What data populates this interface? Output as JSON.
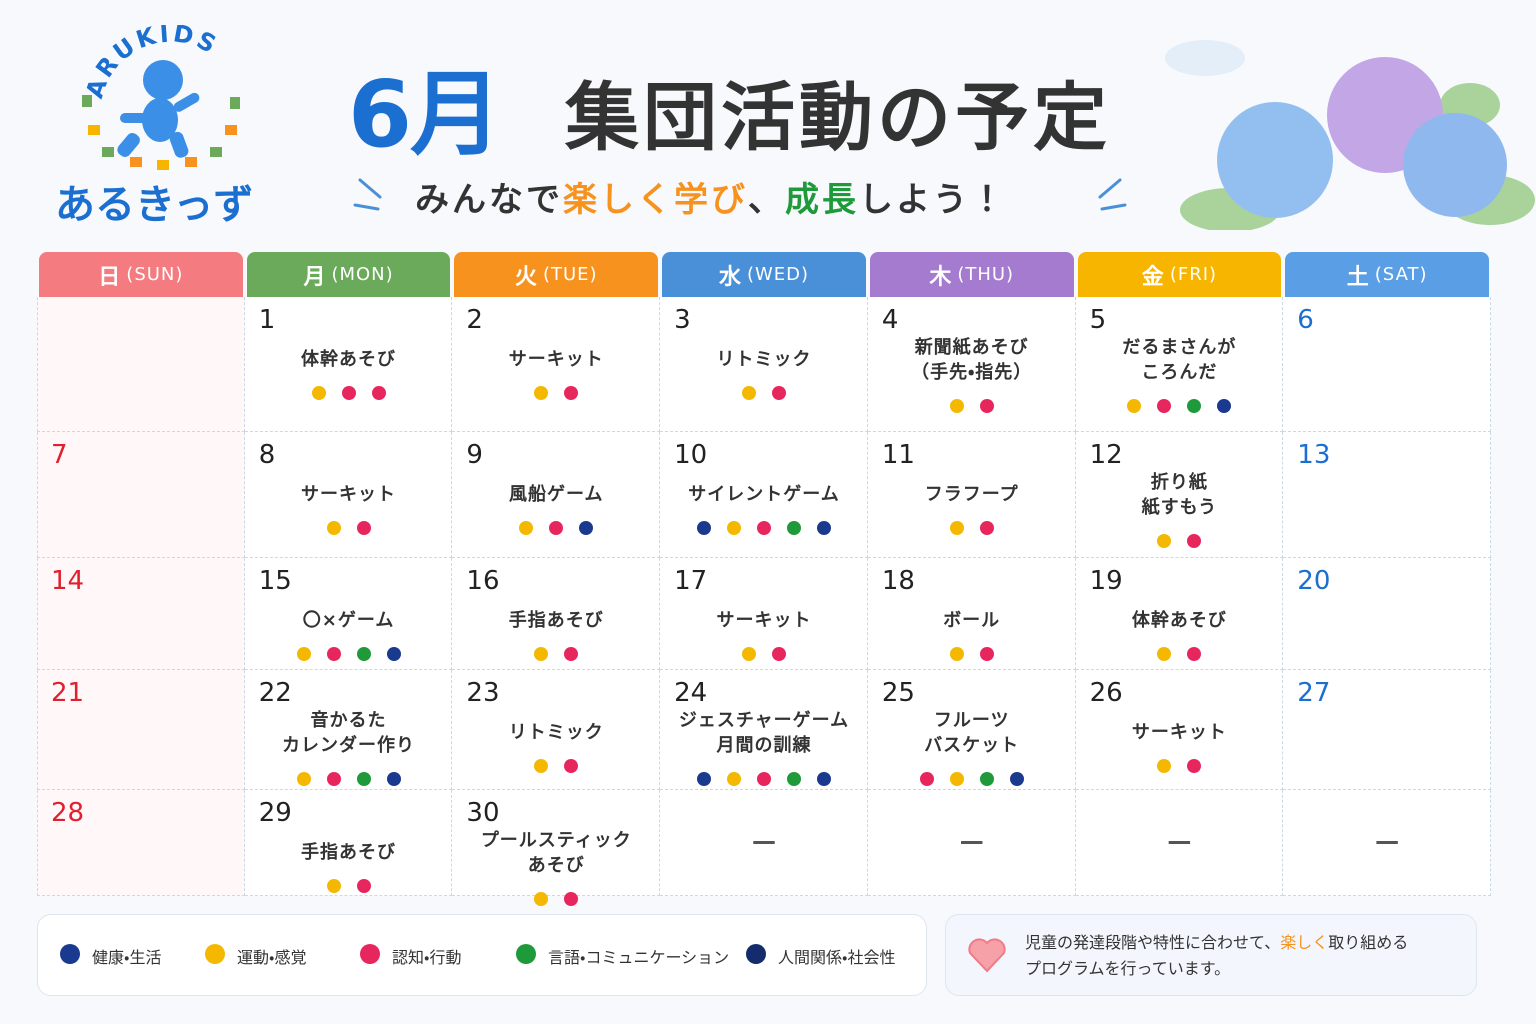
{
  "logo": {
    "arc": "ARUKIDS",
    "name": "あるきっず"
  },
  "header": {
    "month": "6月",
    "title": "集団活動の予定",
    "subtitle": [
      "みんなで",
      "楽しく学び",
      "、",
      "成長",
      "しよう！"
    ]
  },
  "weekdays": [
    {
      "day": "日",
      "en": "(SUN)",
      "color": "#f47b80"
    },
    {
      "day": "月",
      "en": "(MON)",
      "color": "#6aaa5a"
    },
    {
      "day": "火",
      "en": "(TUE)",
      "color": "#f7921e"
    },
    {
      "day": "水",
      "en": "(WED)",
      "color": "#4a90d9"
    },
    {
      "day": "木",
      "en": "(THU)",
      "color": "#a57bd0"
    },
    {
      "day": "金",
      "en": "(FRI)",
      "color": "#f7b500"
    },
    {
      "day": "土",
      "en": "(SAT)",
      "color": "#5a9fe6"
    }
  ],
  "weeks": [
    [
      null,
      {
        "date": 1,
        "lines": [
          "体幹あそび"
        ],
        "dots": [
          "#f5b800",
          "#e8265e",
          "#e8265e"
        ]
      },
      {
        "date": 2,
        "lines": [
          "サーキット"
        ],
        "dots": [
          "#f5b800",
          "#e8265e"
        ]
      },
      {
        "date": 3,
        "lines": [
          "リトミック"
        ],
        "dots": [
          "#f5b800",
          "#e8265e"
        ]
      },
      {
        "date": 4,
        "lines": [
          "新聞紙あそび",
          "（手先・指先）"
        ],
        "dots": [
          "#f5b800",
          "#e8265e"
        ]
      },
      {
        "date": 5,
        "lines": [
          "だるまさんが",
          "ころんだ"
        ],
        "dots": [
          "#f5b800",
          "#e8265e",
          "#1e9a3a",
          "#1a3a8f"
        ]
      },
      {
        "date": 6
      }
    ],
    [
      {
        "date": 7
      },
      {
        "date": 8,
        "lines": [
          "サーキット"
        ],
        "dots": [
          "#f5b800",
          "#e8265e"
        ]
      },
      {
        "date": 9,
        "lines": [
          "風船ゲーム"
        ],
        "dots": [
          "#f5b800",
          "#e8265e",
          "#1a3a8f"
        ]
      },
      {
        "date": 10,
        "lines": [
          "サイレントゲーム"
        ],
        "dots": [
          "#1a3a8f",
          "#f5b800",
          "#e8265e",
          "#1e9a3a",
          "#1a3a8f"
        ]
      },
      {
        "date": 11,
        "lines": [
          "フラフープ"
        ],
        "dots": [
          "#f5b800",
          "#e8265e"
        ]
      },
      {
        "date": 12,
        "lines": [
          "折り紙",
          "紙すもう"
        ],
        "dots": [
          "#f5b800",
          "#e8265e"
        ]
      },
      {
        "date": 13
      }
    ],
    [
      {
        "date": 14
      },
      {
        "date": 15,
        "lines": [
          "〇×ゲーム"
        ],
        "dots": [
          "#f5b800",
          "#e8265e",
          "#1e9a3a",
          "#1a3a8f"
        ]
      },
      {
        "date": 16,
        "lines": [
          "手指あそび"
        ],
        "dots": [
          "#f5b800",
          "#e8265e"
        ]
      },
      {
        "date": 17,
        "lines": [
          "サーキット"
        ],
        "dots": [
          "#f5b800",
          "#e8265e"
        ]
      },
      {
        "date": 18,
        "lines": [
          "ボール"
        ],
        "dots": [
          "#f5b800",
          "#e8265e"
        ]
      },
      {
        "date": 19,
        "lines": [
          "体幹あそび"
        ],
        "dots": [
          "#f5b800",
          "#e8265e"
        ]
      },
      {
        "date": 20
      }
    ],
    [
      {
        "date": 21
      },
      {
        "date": 22,
        "lines": [
          "音かるた",
          "カレンダー作り"
        ],
        "dots": [
          "#f5b800",
          "#e8265e",
          "#1e9a3a",
          "#1a3a8f"
        ]
      },
      {
        "date": 23,
        "lines": [
          "リトミック"
        ],
        "dots": [
          "#f5b800",
          "#e8265e"
        ]
      },
      {
        "date": 24,
        "lines": [
          "ジェスチャーゲーム",
          "月間の訓練"
        ],
        "dots": [
          "#1a3a8f",
          "#f5b800",
          "#e8265e",
          "#1e9a3a",
          "#1a3a8f"
        ]
      },
      {
        "date": 25,
        "lines": [
          "フルーツ",
          "バスケット"
        ],
        "dots": [
          "#e8265e",
          "#f5b800",
          "#1e9a3a",
          "#1a3a8f"
        ]
      },
      {
        "date": 26,
        "lines": [
          "サーキット"
        ],
        "dots": [
          "#f5b800",
          "#e8265e"
        ]
      },
      {
        "date": 27
      }
    ],
    [
      {
        "date": 28
      },
      {
        "date": 29,
        "lines": [
          "手指あそび"
        ],
        "dots": [
          "#f5b800",
          "#e8265e"
        ]
      },
      {
        "date": 30,
        "lines": [
          "プールスティック",
          "あそび"
        ],
        "dots": [
          "#f5b800",
          "#e8265e"
        ]
      },
      {
        "text": "—"
      },
      {
        "text": "—"
      },
      {
        "text": "—"
      },
      {
        "text": "—"
      }
    ]
  ],
  "legend": [
    {
      "label": "健康・生活",
      "color": "#1a3a8f"
    },
    {
      "label": "運動・感覚",
      "color": "#f5b800"
    },
    {
      "label": "認知・行動",
      "color": "#e8265e"
    },
    {
      "label": "言語・コミュニケーション",
      "color": "#1e9a3a"
    },
    {
      "label": "人間関係・社会性",
      "color": "#142c6e"
    }
  ],
  "note": [
    "児童の発達段階や特性に合わせて、",
    "楽しく",
    "取り組める",
    "プログラムを行っています。"
  ]
}
